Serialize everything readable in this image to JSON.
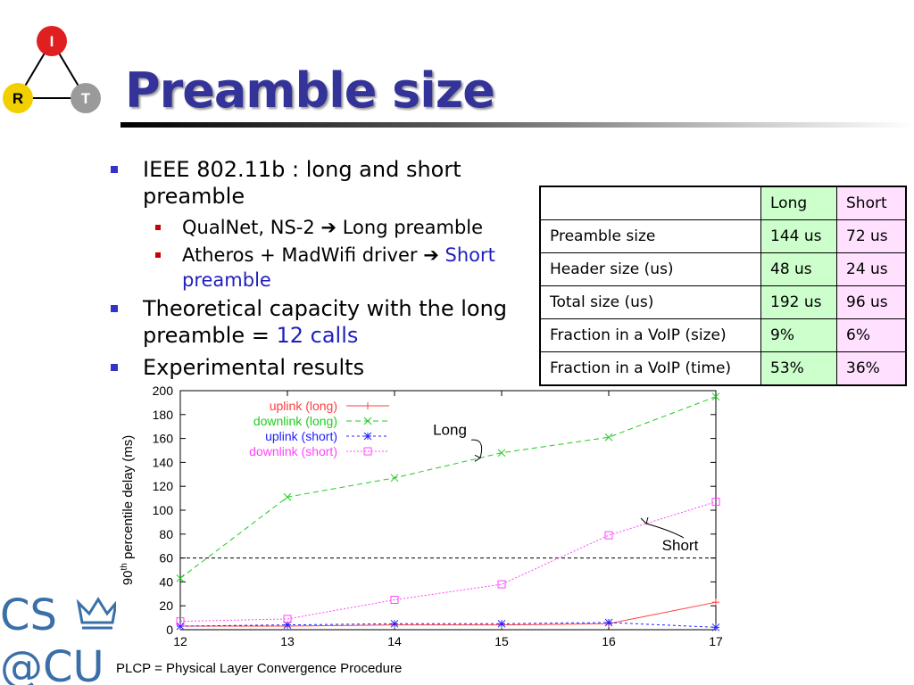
{
  "logo": {
    "top": "I",
    "left": "R",
    "right": "T"
  },
  "slide_title": "Preamble size",
  "bullets": {
    "b1": "IEEE 802.11b : long and short preamble",
    "b1_sub1_pre": "QualNet, NS-2",
    "b1_sub1_post": " Long preamble",
    "b1_sub2_pre": "Atheros + MadWifi driver",
    "b1_sub2_hl": " Short preamble",
    "b2_pre": "Theoretical capacity with the long preamble = ",
    "b2_hl": "12 calls",
    "b3": "Experimental results"
  },
  "table": {
    "header": [
      "",
      "Long",
      "Short"
    ],
    "rows": [
      [
        "Preamble size",
        "144 us",
        "72 us"
      ],
      [
        "Header size (us)",
        "48 us",
        "24 us"
      ],
      [
        "Total size (us)",
        "192 us",
        "96 us"
      ],
      [
        "Fraction in a VoIP (size)",
        "9%",
        "6%"
      ],
      [
        "Fraction in a VoIP (time)",
        "53%",
        "36%"
      ]
    ]
  },
  "chart_data": {
    "type": "line",
    "x": [
      12,
      13,
      14,
      15,
      16,
      17
    ],
    "xlim": [
      12,
      17
    ],
    "ylim": [
      0,
      200
    ],
    "yticks": [
      0,
      20,
      40,
      60,
      80,
      100,
      120,
      140,
      160,
      180,
      200
    ],
    "ylabel_pre": "90",
    "ylabel_sup": "th",
    "ylabel_post": " percentile delay (ms)",
    "reference_line": 60,
    "legend_position": "top-left",
    "series": [
      {
        "name": "uplink (long)",
        "color": "#ff4040",
        "dash": "",
        "marker": "plus",
        "values": [
          3,
          3,
          4,
          4,
          5,
          23
        ]
      },
      {
        "name": "downlink (long)",
        "color": "#20cc20",
        "dash": "6,4",
        "marker": "x",
        "values": [
          43,
          111,
          127,
          148,
          161,
          195
        ]
      },
      {
        "name": "uplink (short)",
        "color": "#2020ff",
        "dash": "3,3",
        "marker": "star",
        "values": [
          3,
          4,
          5,
          5,
          6,
          2
        ]
      },
      {
        "name": "downlink (short)",
        "color": "#ff44ff",
        "dash": "2,2",
        "marker": "square",
        "values": [
          7,
          9,
          25,
          38,
          79,
          107
        ]
      }
    ],
    "annotations": [
      {
        "text": "Long",
        "target_series": 1,
        "x": 14.8
      },
      {
        "text": "Short",
        "target_series": 3,
        "x": 16.35
      }
    ]
  },
  "footnote": "PLCP = Physical Layer Convergence Procedure",
  "cs_logo": {
    "line1": "CS",
    "line2": "@CU"
  }
}
